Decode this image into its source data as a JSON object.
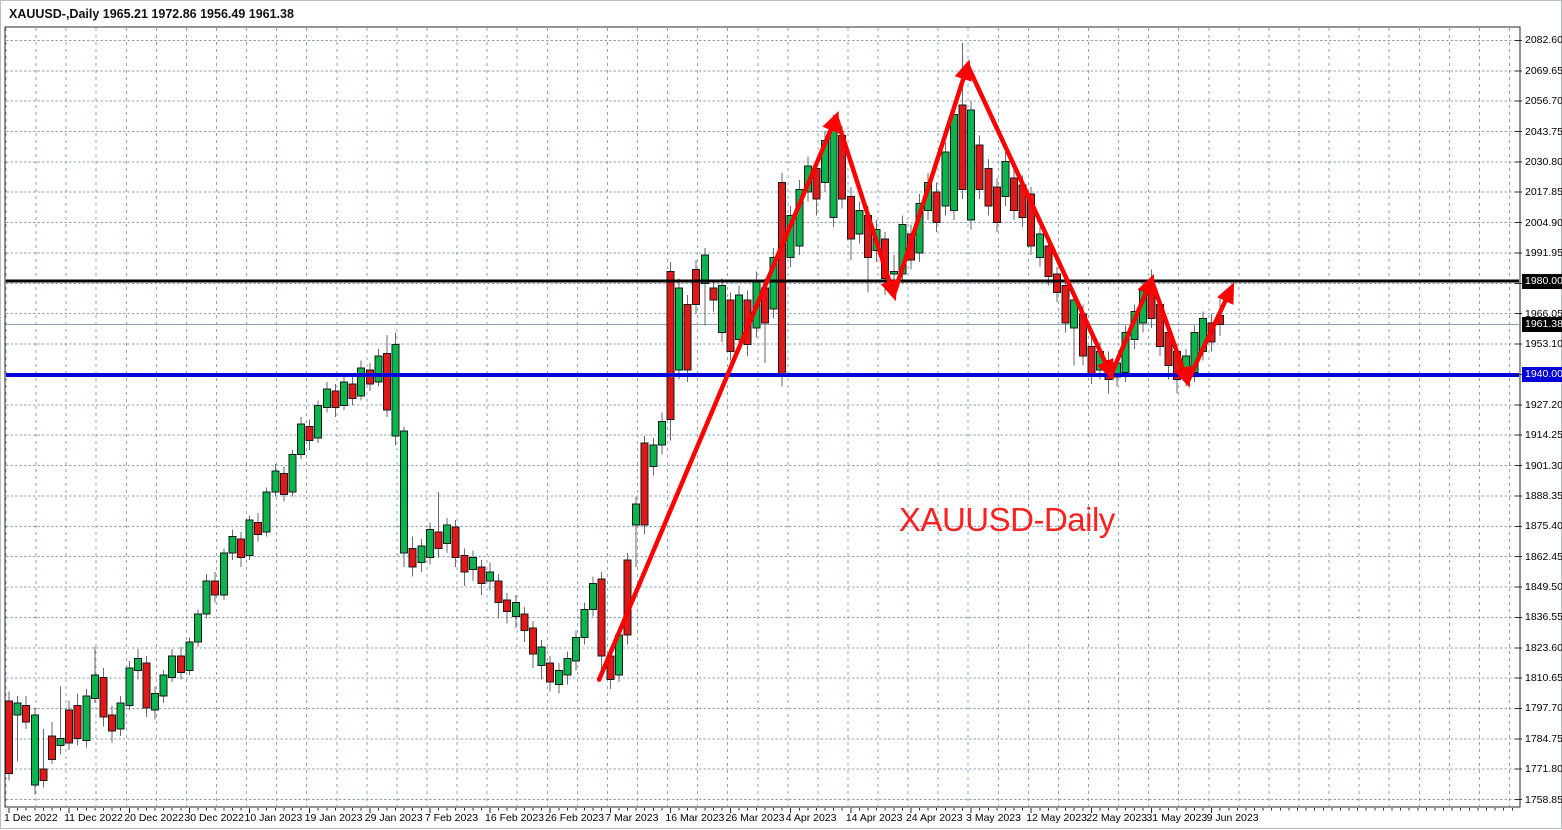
{
  "window": {
    "title": "XAUUSD-,Daily  1965.21 1972.86 1956.49 1961.38"
  },
  "colors": {
    "bull": "#0CB44E",
    "bear": "#E01818",
    "wick": "#6A6A6A",
    "candle_border": "#1A1A1A",
    "grid": "#8FA3B8",
    "axis_line": "#2A2A2A",
    "trend": "#FF0000",
    "annotation": "#FF2020",
    "hline_black": "#000000",
    "hline_blue": "#0000D8",
    "current_line": "#8DA3B5",
    "badge_text": "#FFFFFF",
    "background": "#FFFFFF"
  },
  "chart_data": {
    "type": "candlestick",
    "symbol": "XAUUSD",
    "timeframe": "Daily",
    "title": "XAUUSD-,Daily",
    "last_ohlc": {
      "open": "1965.21",
      "high": "1972.86",
      "low": "1956.49",
      "close": "1961.38"
    },
    "grid": true,
    "ylim": [
      1758.85,
      2082.6
    ],
    "y_axis": {
      "min": 1758.85,
      "max": 2082.6,
      "step": 12.95,
      "ticks": [
        "2082.60",
        "2069.65",
        "2056.70",
        "2043.75",
        "2030.80",
        "2017.85",
        "2004.90",
        "1991.95",
        "1979.00",
        "1966.05",
        "1953.10",
        "1940.15",
        "1927.20",
        "1914.25",
        "1901.30",
        "1888.35",
        "1875.40",
        "1862.45",
        "1849.50",
        "1836.55",
        "1823.60",
        "1810.65",
        "1797.70",
        "1784.75",
        "1771.80",
        "1758.85"
      ]
    },
    "x_axis": {
      "labels": [
        "1 Dec 2022",
        "11 Dec 2022",
        "20 Dec 2022",
        "30 Dec 2022",
        "10 Jan 2023",
        "19 Jan 2023",
        "29 Jan 2023",
        "7 Feb 2023",
        "16 Feb 2023",
        "26 Feb 2023",
        "7 Mar 2023",
        "16 Mar 2023",
        "26 Mar 2023",
        "4 Apr 2023",
        "14 Apr 2023",
        "24 Apr 2023",
        "3 May 2023",
        "12 May 2023",
        "22 May 2023",
        "31 May 2023",
        "9 Jun 2023"
      ],
      "candles_per_label": 7
    },
    "candles": [
      [
        1801,
        1805,
        1767,
        1770
      ],
      [
        1795,
        1803,
        1775,
        1800
      ],
      [
        1799,
        1803,
        1789,
        1792
      ],
      [
        1765,
        1798,
        1761,
        1795
      ],
      [
        1772,
        1789,
        1764,
        1767
      ],
      [
        1786,
        1792,
        1774,
        1776
      ],
      [
        1782,
        1807,
        1778,
        1785
      ],
      [
        1797,
        1801,
        1780,
        1783
      ],
      [
        1799,
        1804,
        1782,
        1785
      ],
      [
        1784,
        1806,
        1781,
        1803
      ],
      [
        1802,
        1824,
        1800,
        1812
      ],
      [
        1811,
        1815,
        1790,
        1794
      ],
      [
        1795,
        1799,
        1783,
        1788
      ],
      [
        1789,
        1803,
        1786,
        1800
      ],
      [
        1799,
        1818,
        1797,
        1815
      ],
      [
        1814,
        1823,
        1810,
        1819
      ],
      [
        1817,
        1820,
        1794,
        1798
      ],
      [
        1797,
        1807,
        1793,
        1804
      ],
      [
        1803,
        1814,
        1800,
        1812
      ],
      [
        1811,
        1823,
        1809,
        1820
      ],
      [
        1820,
        1824,
        1810,
        1813
      ],
      [
        1814,
        1828,
        1812,
        1826
      ],
      [
        1826,
        1840,
        1824,
        1838
      ],
      [
        1838,
        1855,
        1836,
        1852
      ],
      [
        1852,
        1856,
        1843,
        1846
      ],
      [
        1846,
        1866,
        1844,
        1864
      ],
      [
        1864,
        1874,
        1861,
        1871
      ],
      [
        1870,
        1873,
        1858,
        1862
      ],
      [
        1863,
        1880,
        1861,
        1878
      ],
      [
        1877,
        1881,
        1869,
        1872
      ],
      [
        1873,
        1892,
        1871,
        1890
      ],
      [
        1890,
        1902,
        1888,
        1899
      ],
      [
        1898,
        1901,
        1886,
        1889
      ],
      [
        1890,
        1908,
        1888,
        1906
      ],
      [
        1906,
        1922,
        1904,
        1919
      ],
      [
        1918,
        1921,
        1908,
        1912
      ],
      [
        1913,
        1929,
        1911,
        1927
      ],
      [
        1926,
        1937,
        1924,
        1934
      ],
      [
        1933,
        1936,
        1922,
        1926
      ],
      [
        1927,
        1940,
        1925,
        1937
      ],
      [
        1936,
        1939,
        1927,
        1930
      ],
      [
        1931,
        1946,
        1929,
        1943
      ],
      [
        1942,
        1945,
        1933,
        1936
      ],
      [
        1937,
        1951,
        1935,
        1948
      ],
      [
        1949,
        1957,
        1922,
        1925
      ],
      [
        1914,
        1958,
        1910,
        1953
      ],
      [
        1864,
        1918,
        1858,
        1916
      ],
      [
        1866,
        1871,
        1854,
        1858
      ],
      [
        1860,
        1870,
        1856,
        1867
      ],
      [
        1862,
        1877,
        1859,
        1874
      ],
      [
        1873,
        1890,
        1862,
        1866
      ],
      [
        1868,
        1879,
        1864,
        1876
      ],
      [
        1875,
        1878,
        1858,
        1862
      ],
      [
        1863,
        1866,
        1850,
        1856
      ],
      [
        1857,
        1865,
        1852,
        1862
      ],
      [
        1858,
        1861,
        1846,
        1851
      ],
      [
        1852,
        1860,
        1848,
        1856
      ],
      [
        1852,
        1855,
        1836,
        1843
      ],
      [
        1844,
        1847,
        1834,
        1839
      ],
      [
        1837,
        1846,
        1832,
        1843
      ],
      [
        1838,
        1841,
        1826,
        1831
      ],
      [
        1832,
        1835,
        1815,
        1821
      ],
      [
        1816,
        1827,
        1810,
        1824
      ],
      [
        1817,
        1820,
        1805,
        1809
      ],
      [
        1808,
        1817,
        1804,
        1814
      ],
      [
        1812,
        1822,
        1808,
        1819
      ],
      [
        1818,
        1831,
        1814,
        1828
      ],
      [
        1828,
        1843,
        1825,
        1840
      ],
      [
        1840,
        1854,
        1837,
        1851
      ],
      [
        1853,
        1856,
        1812,
        1820
      ],
      [
        1820,
        1823,
        1806,
        1810
      ],
      [
        1812,
        1832,
        1809,
        1829
      ],
      [
        1861,
        1864,
        1825,
        1829
      ],
      [
        1876,
        1888,
        1858,
        1885
      ],
      [
        1911,
        1914,
        1872,
        1876
      ],
      [
        1901,
        1913,
        1897,
        1910
      ],
      [
        1910,
        1924,
        1906,
        1920
      ],
      [
        1984,
        1988,
        1912,
        1921
      ],
      [
        1942,
        1981,
        1938,
        1977
      ],
      [
        1970,
        1974,
        1937,
        1942
      ],
      [
        1985,
        1989,
        1966,
        1970
      ],
      [
        1979,
        1994,
        1961,
        1991
      ],
      [
        1977,
        1980,
        1967,
        1972
      ],
      [
        1958,
        1981,
        1954,
        1978
      ],
      [
        1972,
        1975,
        1946,
        1950
      ],
      [
        1955,
        1978,
        1951,
        1974
      ],
      [
        1972,
        1976,
        1948,
        1953
      ],
      [
        1960,
        1984,
        1956,
        1980
      ],
      [
        1977,
        1981,
        1945,
        1962
      ],
      [
        1968,
        1994,
        1964,
        1990
      ],
      [
        2022,
        2026,
        1935,
        1940
      ],
      [
        1990,
        2012,
        1986,
        2008
      ],
      [
        1995,
        2023,
        1991,
        2019
      ],
      [
        2018,
        2033,
        2014,
        2029
      ],
      [
        2028,
        2032,
        2008,
        2015
      ],
      [
        2022,
        2044,
        2018,
        2040
      ],
      [
        2007,
        2051,
        2003,
        2046
      ],
      [
        2042,
        2046,
        2011,
        2015
      ],
      [
        2016,
        2020,
        1989,
        1998
      ],
      [
        2000,
        2014,
        1996,
        2010
      ],
      [
        2008,
        2012,
        1975,
        1990
      ],
      [
        1993,
        2006,
        1988,
        2002
      ],
      [
        1998,
        2001,
        1974,
        1981
      ],
      [
        1983,
        1991,
        1975,
        1984
      ],
      [
        1983,
        2008,
        1979,
        2004
      ],
      [
        2000,
        2004,
        1985,
        1989
      ],
      [
        1992,
        2017,
        1988,
        2013
      ],
      [
        2010,
        2026,
        2006,
        2022
      ],
      [
        2018,
        2022,
        2001,
        2005
      ],
      [
        2012,
        2039,
        2008,
        2035
      ],
      [
        2010,
        2055,
        2006,
        2051
      ],
      [
        2055,
        2081.5,
        2015,
        2019
      ],
      [
        2006,
        2057,
        2002,
        2053
      ],
      [
        2038,
        2042,
        2015,
        2019
      ],
      [
        2028,
        2032,
        2008,
        2012
      ],
      [
        2020,
        2024,
        2001,
        2005
      ],
      [
        2016,
        2035,
        2012,
        2031
      ],
      [
        2024,
        2028,
        2006,
        2010
      ],
      [
        2021,
        2025,
        2003,
        2007
      ],
      [
        2017,
        2020,
        1991,
        1995
      ],
      [
        1990,
        2003,
        1986,
        2000
      ],
      [
        1995,
        1998,
        1978,
        1982
      ],
      [
        1983,
        1986,
        1971,
        1975
      ],
      [
        1978,
        1981,
        1958,
        1962
      ],
      [
        1960,
        1976,
        1944,
        1972
      ],
      [
        1966,
        1970,
        1944,
        1948
      ],
      [
        1952,
        1956,
        1936,
        1940
      ],
      [
        1942,
        1954,
        1938,
        1950
      ],
      [
        1946,
        1950,
        1932,
        1938
      ],
      [
        1939,
        1948,
        1935,
        1945
      ],
      [
        1941,
        1961,
        1937,
        1958
      ],
      [
        1955,
        1970,
        1951,
        1967
      ],
      [
        1962,
        1980,
        1958,
        1976
      ],
      [
        1978,
        1985,
        1960,
        1964
      ],
      [
        1970,
        1973,
        1948,
        1952
      ],
      [
        1958,
        1962,
        1938,
        1944
      ],
      [
        1950,
        1953,
        1932,
        1938
      ],
      [
        1939,
        1951,
        1935,
        1948
      ],
      [
        1941,
        1961,
        1937,
        1958
      ],
      [
        1950,
        1967,
        1946,
        1964
      ],
      [
        1962,
        1966,
        1950,
        1954
      ],
      [
        1965.21,
        1972.86,
        1956.49,
        1961.38
      ]
    ],
    "hlines": [
      {
        "price": 1980.0,
        "label": "1980.00",
        "color": "#000000",
        "badge_bg": "#000000",
        "width": 3,
        "role": "resistance-line"
      },
      {
        "price": 1961.38,
        "label": "1961.38",
        "color": "#8DA3B5",
        "badge_bg": "#000000",
        "width": 1,
        "role": "current-price-line"
      },
      {
        "price": 1940.0,
        "label": "1940.00",
        "color": "#0000D8",
        "badge_bg": "#0000D8",
        "width": 4,
        "role": "support-line"
      }
    ],
    "trend_arrows": {
      "color": "#FF0000",
      "width": 4.5,
      "points": [
        {
          "i": 68.7,
          "price": 1810
        },
        {
          "i": 96.3,
          "price": 2050
        },
        {
          "i": 103.0,
          "price": 1974
        },
        {
          "i": 111.6,
          "price": 2072
        },
        {
          "i": 128.3,
          "price": 1940
        },
        {
          "i": 133.0,
          "price": 1980.5
        },
        {
          "i": 137.2,
          "price": 1937
        },
        {
          "i": 142.3,
          "price": 1977
        }
      ]
    },
    "annotation": {
      "text": "XAUUSD-Daily",
      "color": "#FF2020",
      "i": 103.6,
      "price": 1886.2
    }
  }
}
